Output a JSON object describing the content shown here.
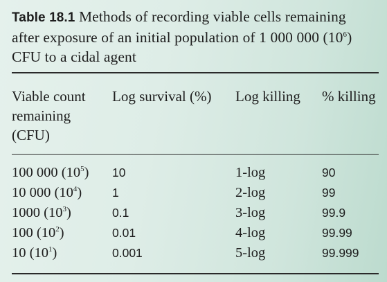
{
  "caption": {
    "label": "Table 18.1",
    "text_line1": "Methods of recording viable cells remaining",
    "text_line2_a": "after exposure of an initial population of 1 000 000 (10",
    "text_line2_sup": "6",
    "text_line2_b": ")",
    "text_line3": "CFU to a cidal agent"
  },
  "headers": {
    "col1_line1": "Viable count",
    "col1_line2": "remaining",
    "col1_line3": "(CFU)",
    "col2": "Log survival (%)",
    "col3": "Log killing",
    "col4": "% killing"
  },
  "rows": [
    {
      "count": "100 000 (10",
      "exp": "5",
      "close": ")",
      "log_survival": "10",
      "log_killing": "1-log",
      "pct_killing": "90"
    },
    {
      "count": "10 000 (10",
      "exp": "4",
      "close": ")",
      "log_survival": "1",
      "log_killing": "2-log",
      "pct_killing": "99"
    },
    {
      "count": "1000 (10",
      "exp": "3",
      "close": ")",
      "log_survival": "0.1",
      "log_killing": "3-log",
      "pct_killing": "99.9"
    },
    {
      "count": "100 (10",
      "exp": "2",
      "close": ")",
      "log_survival": "0.01",
      "log_killing": "4-log",
      "pct_killing": "99.99"
    },
    {
      "count": "10 (10",
      "exp": "1",
      "close": ")",
      "log_survival": "0.001",
      "log_killing": "5-log",
      "pct_killing": "99.999"
    }
  ]
}
